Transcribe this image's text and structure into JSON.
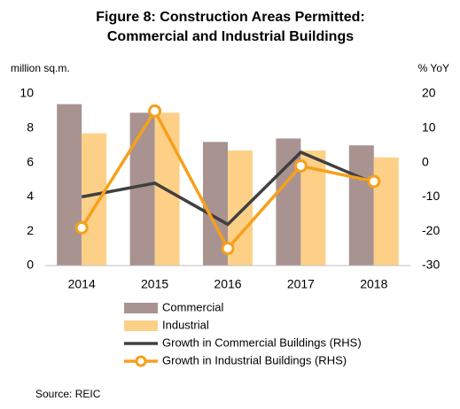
{
  "chart_data": {
    "type": "bar",
    "title": [
      "Figure 8: Construction Areas Permitted:",
      "Commercial and Industrial Buildings"
    ],
    "y_label": "million sq.m.",
    "y2_label": "% YoY",
    "categories": [
      "2014",
      "2015",
      "2016",
      "2017",
      "2018"
    ],
    "series": [
      {
        "name": "Commercial",
        "type": "bar",
        "color": "#a89391",
        "values": [
          9.4,
          8.9,
          7.2,
          7.4,
          7.0
        ]
      },
      {
        "name": "Industrial",
        "type": "bar",
        "color": "#fdd088",
        "values": [
          7.7,
          8.9,
          6.7,
          6.7,
          6.3
        ]
      },
      {
        "name": "Growth in Commercial Buildings (RHS)",
        "type": "line",
        "axis": "y2",
        "color": "#404040",
        "marker": false,
        "values": [
          -10,
          -6,
          -18,
          3,
          -6
        ]
      },
      {
        "name": "Growth in Industrial Buildings (RHS)",
        "type": "line",
        "axis": "y2",
        "color": "#f6a01b",
        "marker": true,
        "values": [
          -19,
          15,
          -25,
          -1,
          -5.5
        ]
      }
    ],
    "ylim": [
      0,
      10
    ],
    "yticks": [
      0,
      2,
      4,
      6,
      8,
      10
    ],
    "y2lim": [
      -30,
      20
    ],
    "y2ticks": [
      -30,
      -20,
      -10,
      0,
      10,
      20
    ],
    "grid": false,
    "note": "Source: REIC"
  }
}
